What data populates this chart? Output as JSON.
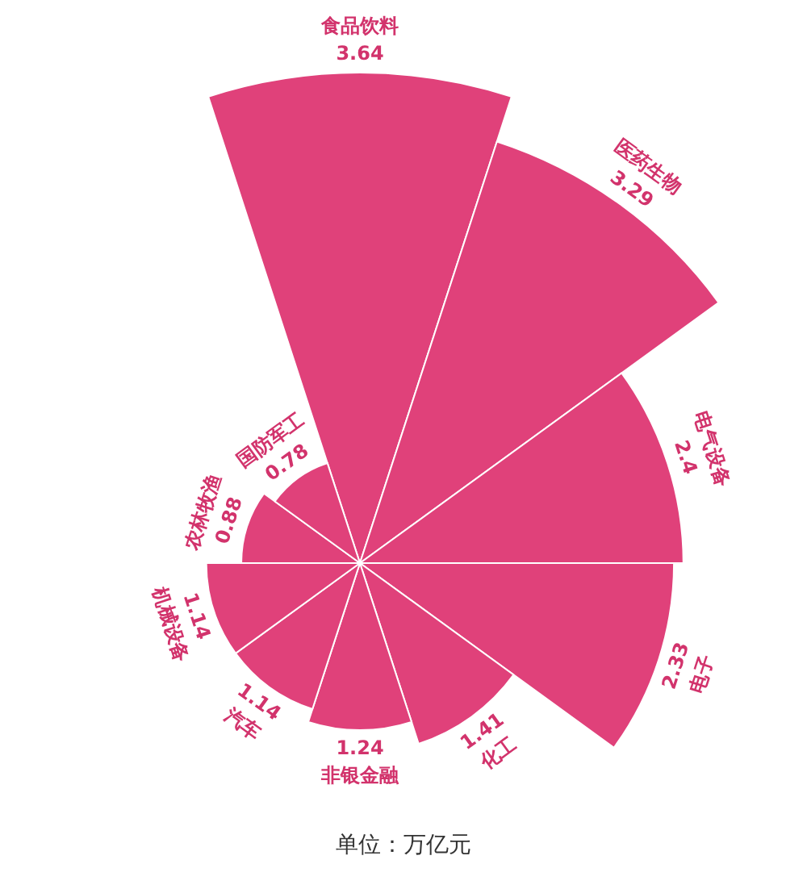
{
  "chart_data": {
    "type": "other",
    "categories": [
      "食品饮料",
      "医药生物",
      "电气设备",
      "电子",
      "化工",
      "非银金融",
      "汽车",
      "机械设备",
      "农林牧渔",
      "国防军工"
    ],
    "values": [
      3.64,
      3.29,
      2.4,
      2.33,
      1.41,
      1.24,
      1.14,
      1.14,
      0.88,
      0.78
    ],
    "color": "#e0417a",
    "data_labels": true,
    "annotations": [
      "单位：万亿元"
    ]
  }
}
